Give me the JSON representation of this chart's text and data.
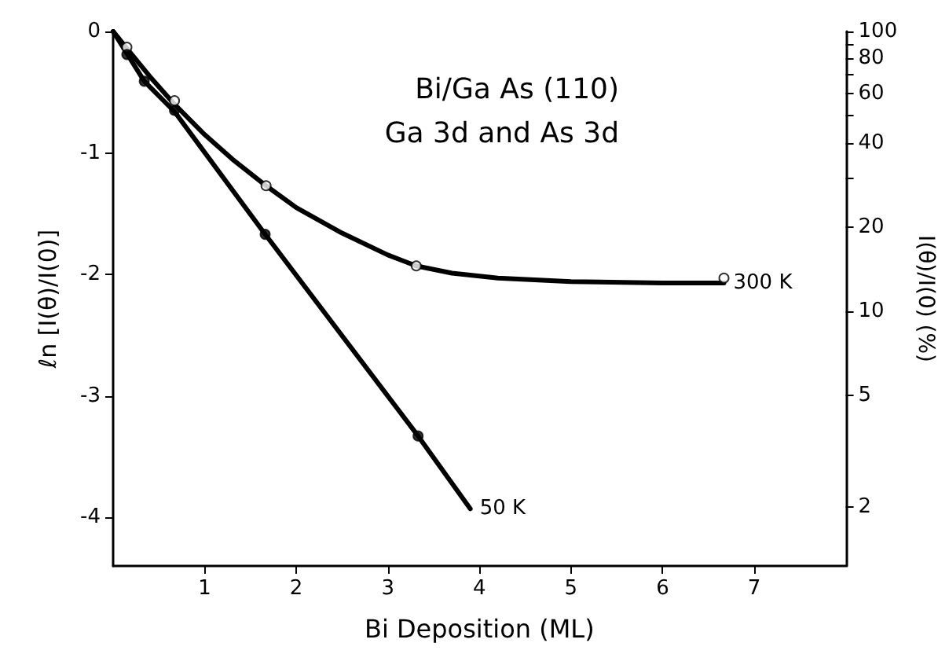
{
  "chart_data": {
    "type": "line",
    "xlabel": "Bi Deposition (ML)",
    "ylabel": "ℓn [I(θ)/I(0)]",
    "y2label": "I(θ)/I(0) (%)",
    "annotations": [
      "Bi/Ga As (110)",
      "Ga 3d and As 3d"
    ],
    "xlim": [
      0,
      8
    ],
    "xticks": [
      1,
      2,
      3,
      4,
      5,
      6,
      7
    ],
    "ylim": [
      -4.4,
      0
    ],
    "yticks": [
      0,
      -1,
      -2,
      -3,
      -4
    ],
    "y2lim": [
      1.228,
      100
    ],
    "y2ticks": [
      100,
      {
        "value": 90,
        "label": null
      },
      80,
      {
        "value": 70,
        "label": null
      },
      60,
      {
        "value": 50,
        "label": null
      },
      40,
      {
        "value": 30,
        "label": null
      },
      20,
      10,
      5,
      2
    ],
    "log": "y2",
    "grid": false,
    "legend": false,
    "series": [
      {
        "name": "300 K",
        "color": "#000000",
        "marker": "none",
        "x": [
          0,
          0.15,
          0.4,
          0.67,
          1.0,
          1.3,
          1.67,
          2.0,
          2.5,
          3.0,
          3.31,
          3.7,
          4.2,
          5.0,
          6.0,
          6.67
        ],
        "values": [
          0,
          -0.14,
          -0.37,
          -0.6,
          -0.85,
          -1.05,
          -1.27,
          -1.45,
          -1.66,
          -1.84,
          -1.93,
          -1.99,
          -2.03,
          -2.06,
          -2.07,
          -2.07
        ]
      },
      {
        "type": "scatter",
        "color": "#ffffff",
        "marker": "circle",
        "x": [
          0.15,
          0.67,
          1.67,
          3.31,
          6.67
        ],
        "values": [
          -0.13,
          -0.57,
          -1.27,
          -1.93,
          -2.03
        ]
      },
      {
        "name": "50 K",
        "color": "#000000",
        "marker": "none",
        "x": [
          0,
          0.15,
          0.34,
          0.67,
          1.66,
          3.33,
          3.9
        ],
        "values": [
          0,
          -0.18,
          -0.41,
          -0.66,
          -1.67,
          -3.33,
          -3.93
        ]
      },
      {
        "type": "scatter",
        "color": "#000000",
        "marker": "circle",
        "x": [
          0.15,
          0.34,
          0.67,
          1.66,
          3.33
        ],
        "values": [
          -0.19,
          -0.41,
          -0.65,
          -1.67,
          -3.33
        ]
      }
    ]
  }
}
